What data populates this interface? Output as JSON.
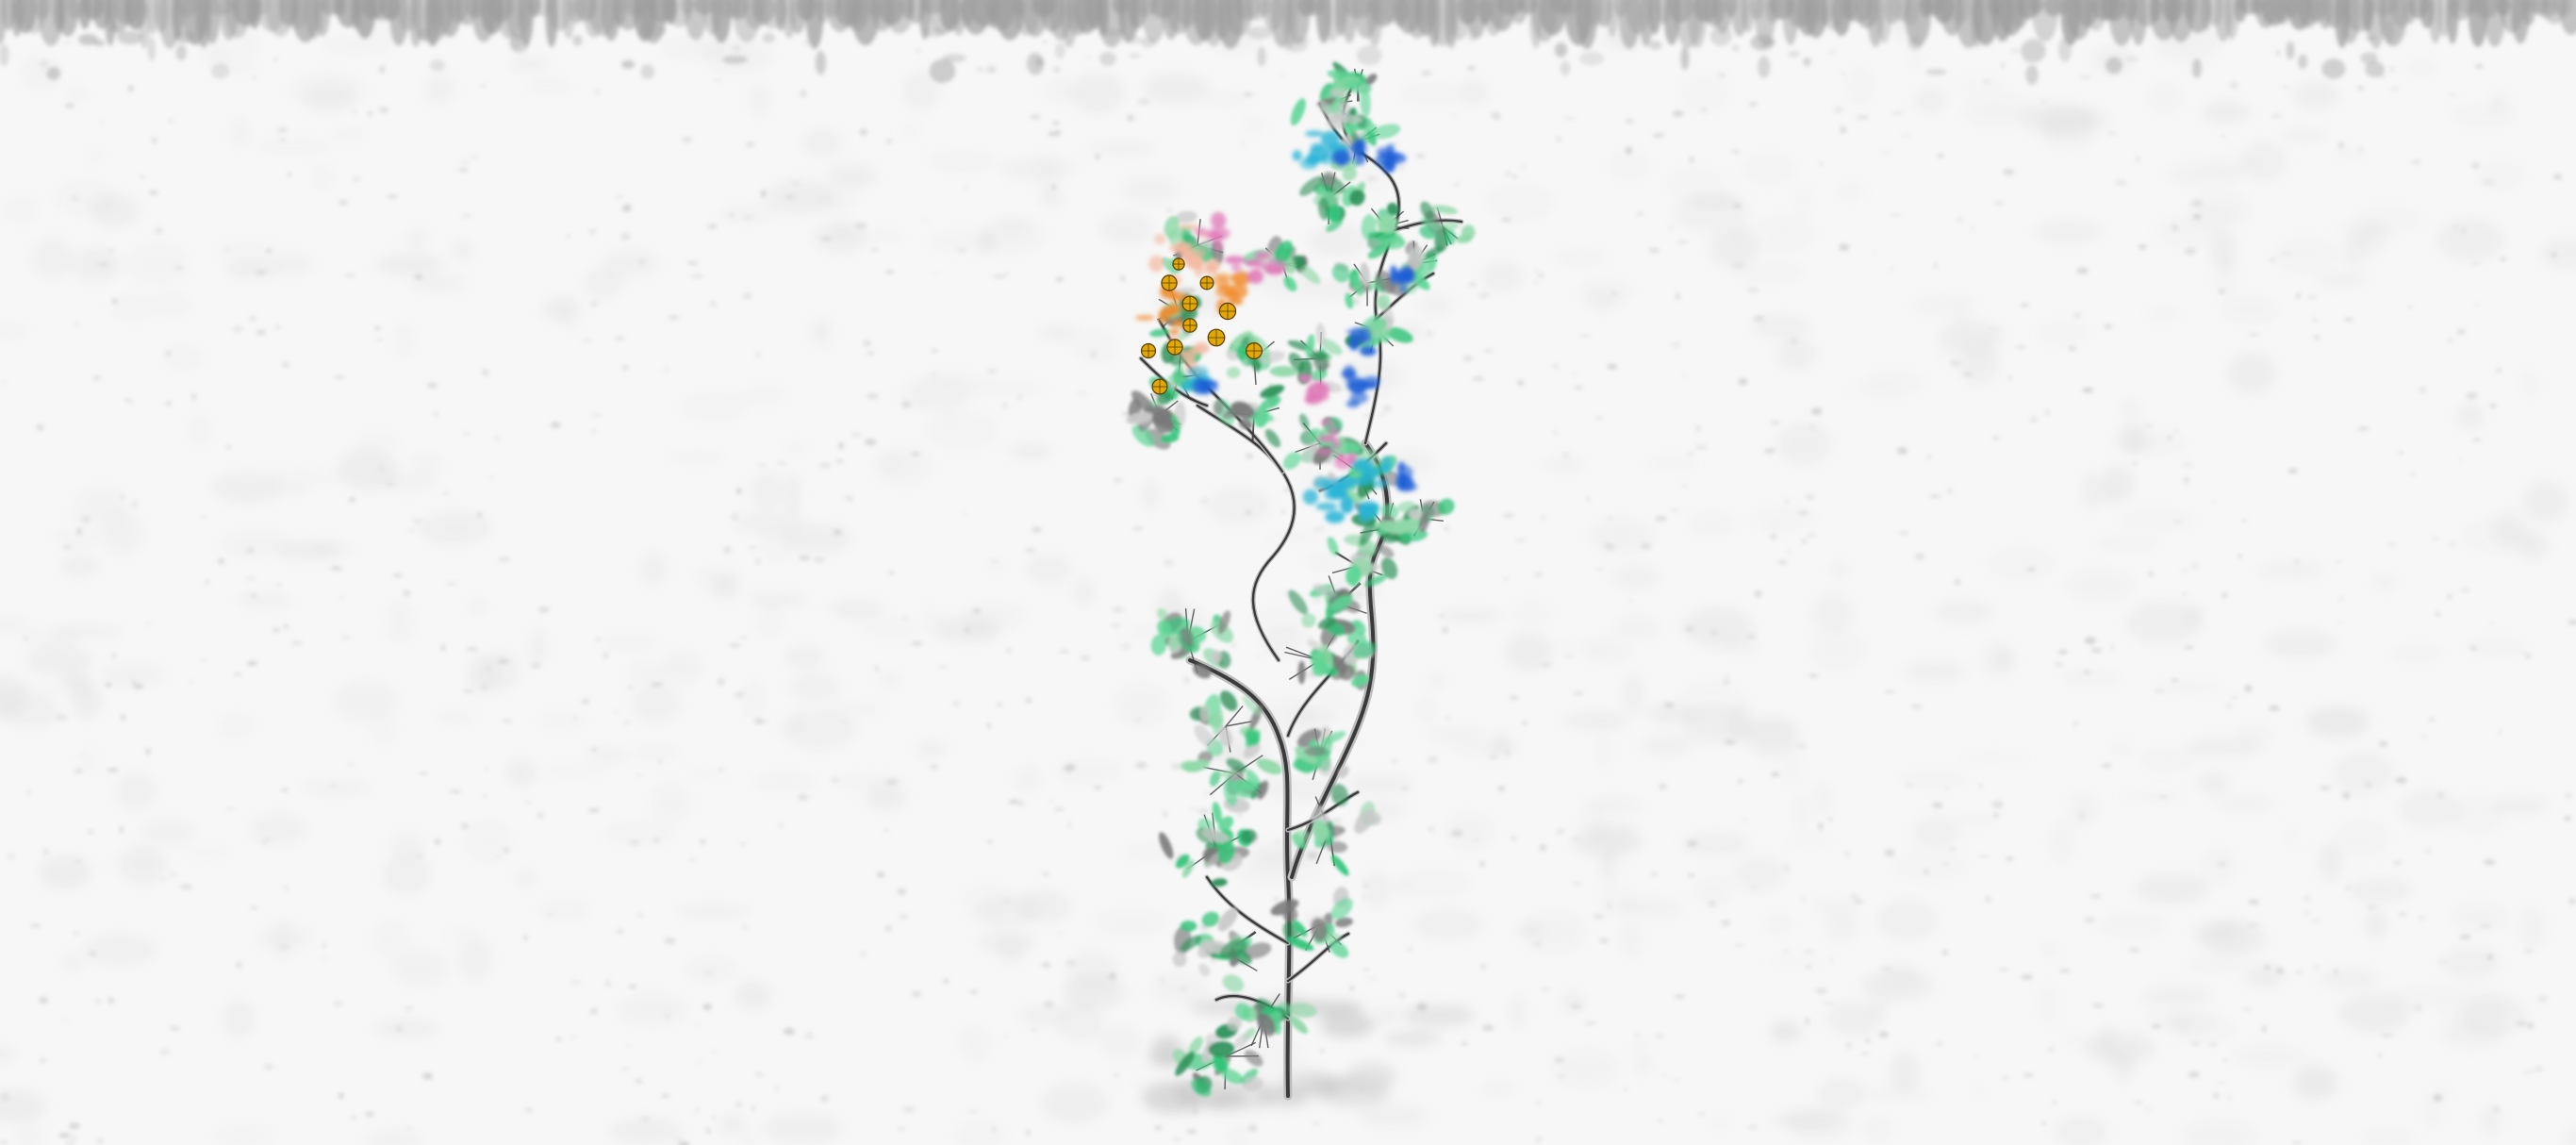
{
  "scene": {
    "background_color": "#f7f7f7",
    "texture_color": "#d9d9d9",
    "frost_color": "#9a9a9a"
  },
  "plant": {
    "stem_color": "#3a3a3a",
    "stem_highlight": "#bdbdbd",
    "leaf_colors": [
      "#34c47a",
      "#5fd596",
      "#2a8f57",
      "#8fd8a8",
      "#c9c9c9",
      "#7a7a7a"
    ],
    "flower_colors": {
      "orange": "#f08a2a",
      "gold": "#e0a800",
      "pink": "#e07ab8",
      "cyan": "#27b3d6",
      "blue": "#1f5fd6",
      "peach": "#f2b8a0"
    }
  }
}
